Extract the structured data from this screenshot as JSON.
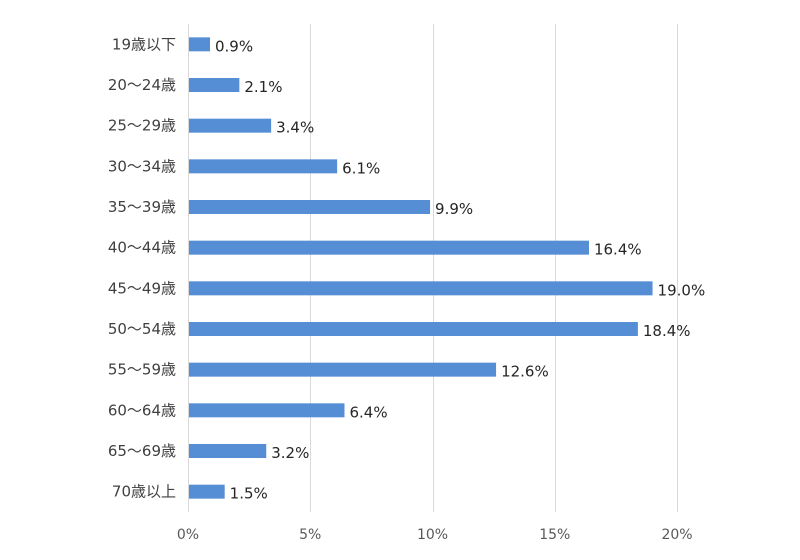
{
  "chart_data": {
    "type": "bar",
    "orientation": "horizontal",
    "title": "",
    "xlabel": "",
    "ylabel": "",
    "categories": [
      "19歳以下",
      "20～24歳",
      "25～29歳",
      "30～34歳",
      "35～39歳",
      "40～44歳",
      "45～49歳",
      "50～54歳",
      "55～59歳",
      "60～64歳",
      "65～69歳",
      "70歳以上"
    ],
    "values": [
      0.9,
      2.1,
      3.4,
      6.1,
      9.9,
      16.4,
      19.0,
      18.4,
      12.6,
      6.4,
      3.2,
      1.5
    ],
    "value_labels": [
      "0.9%",
      "2.1%",
      "3.4%",
      "6.1%",
      "9.9%",
      "16.4%",
      "19.0%",
      "18.4%",
      "12.6%",
      "6.4%",
      "3.2%",
      "1.5%"
    ],
    "xlim": [
      0,
      20
    ],
    "x_ticks": [
      0,
      5,
      10,
      15,
      20
    ],
    "x_tick_labels": [
      "0%",
      "5%",
      "10%",
      "15%",
      "20%"
    ],
    "grid": true,
    "legend": "none",
    "bar_color": "#558ed5"
  }
}
